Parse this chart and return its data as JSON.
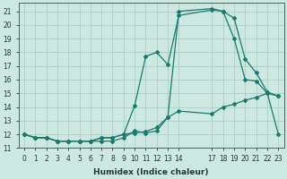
{
  "xlabel": "Humidex (Indice chaleur)",
  "background_color": "#cce8e0",
  "grid_color": "#aacfc8",
  "line_color": "#1a7a6e",
  "xlim": [
    -0.5,
    23.5
  ],
  "ylim": [
    11,
    21.6
  ],
  "yticks": [
    11,
    12,
    13,
    14,
    15,
    16,
    17,
    18,
    19,
    20,
    21
  ],
  "xticks": [
    0,
    1,
    2,
    3,
    4,
    5,
    6,
    7,
    8,
    9,
    10,
    11,
    12,
    13,
    14,
    17,
    18,
    19,
    20,
    21,
    22,
    23
  ],
  "xtick_labels": [
    "0",
    "1",
    "2",
    "3",
    "4",
    "5",
    "6",
    "7",
    "8",
    "9",
    "10",
    "11",
    "12",
    "13",
    "14",
    "17",
    "18",
    "19",
    "20",
    "21",
    "22",
    "23"
  ],
  "line1_x": [
    0,
    1,
    2,
    3,
    4,
    5,
    6,
    7,
    8,
    9,
    10,
    11,
    12,
    13,
    14,
    17,
    18,
    19,
    20,
    21,
    22,
    23
  ],
  "line1_y": [
    12.0,
    11.75,
    11.75,
    11.5,
    11.5,
    11.5,
    11.5,
    11.5,
    11.5,
    11.75,
    12.25,
    12.1,
    12.25,
    13.25,
    21.0,
    21.2,
    21.0,
    19.0,
    16.0,
    15.9,
    15.0,
    12.0
  ],
  "line2_x": [
    0,
    1,
    2,
    3,
    4,
    5,
    6,
    7,
    8,
    9,
    10,
    11,
    12,
    13,
    14,
    17,
    18,
    19,
    20,
    21,
    22,
    23
  ],
  "line2_y": [
    12.0,
    11.75,
    11.75,
    11.5,
    11.5,
    11.5,
    11.5,
    11.75,
    11.75,
    12.0,
    14.1,
    17.7,
    18.0,
    17.1,
    20.7,
    21.1,
    21.0,
    20.5,
    17.5,
    16.5,
    15.1,
    14.8
  ],
  "line3_x": [
    0,
    1,
    2,
    3,
    4,
    5,
    6,
    7,
    8,
    9,
    10,
    11,
    12,
    13,
    14,
    17,
    18,
    19,
    20,
    21,
    22,
    23
  ],
  "line3_y": [
    12.0,
    11.75,
    11.75,
    11.5,
    11.5,
    11.5,
    11.5,
    11.75,
    11.75,
    12.0,
    12.1,
    12.2,
    12.5,
    13.25,
    13.7,
    13.5,
    14.0,
    14.2,
    14.5,
    14.7,
    15.0,
    14.8
  ]
}
